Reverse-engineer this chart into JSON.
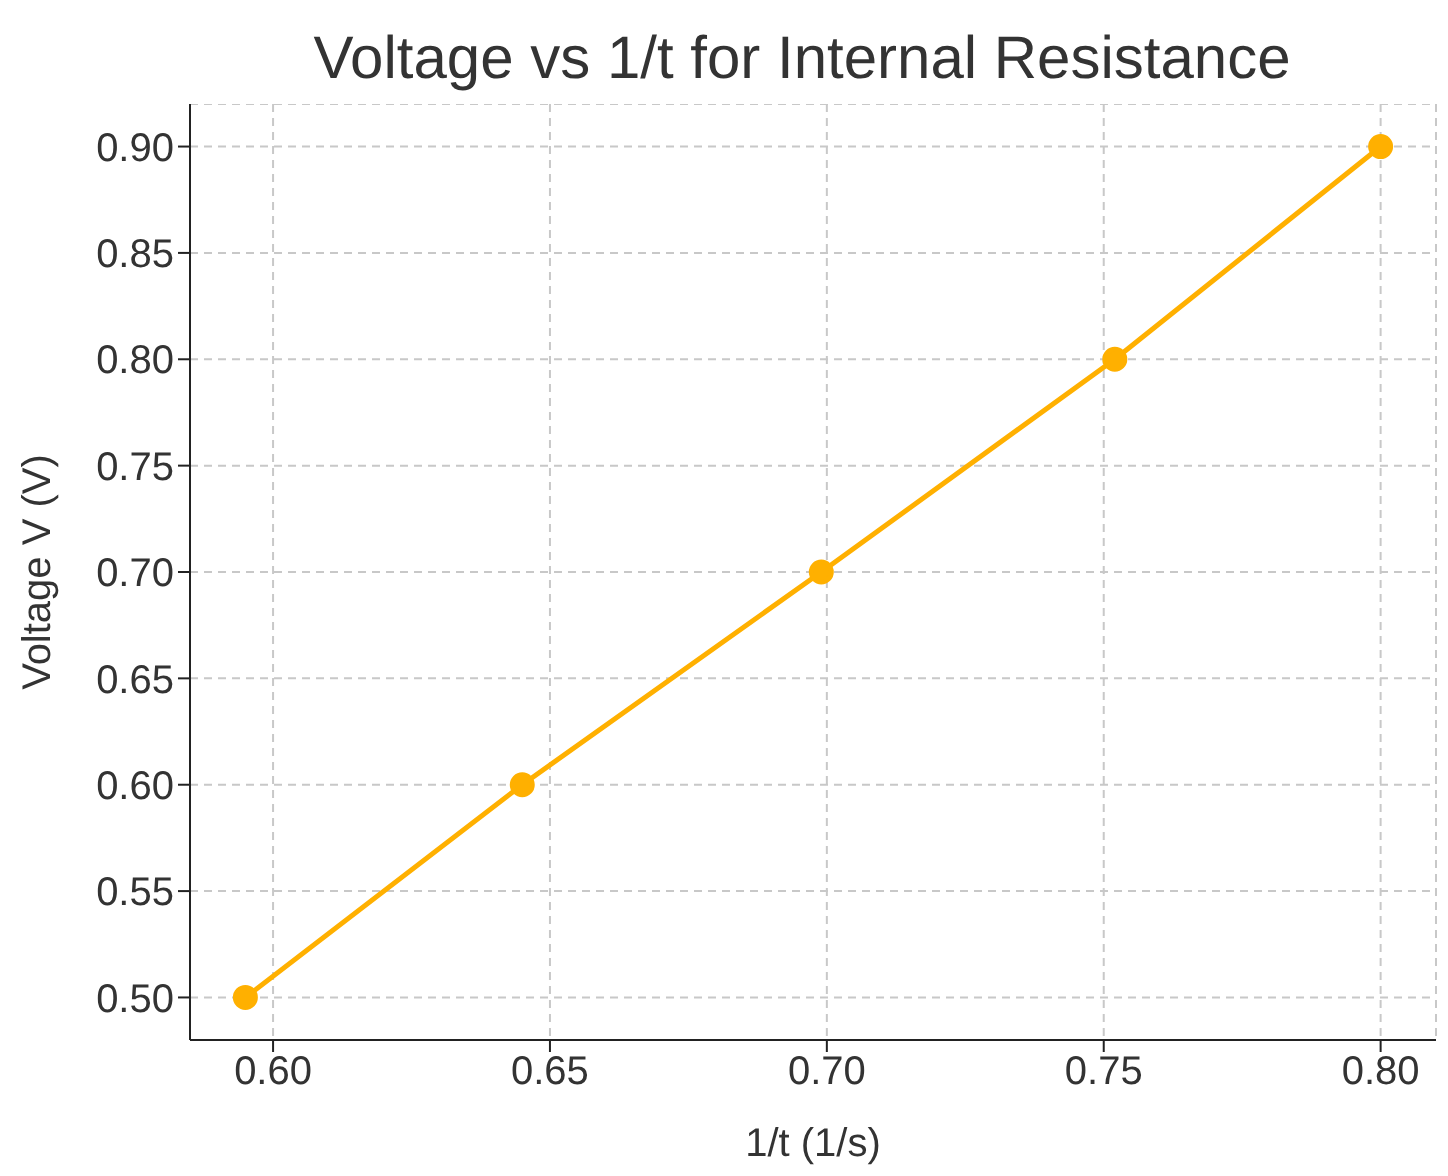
{
  "chart_data": {
    "type": "line",
    "title": "Voltage vs 1/t for Internal Resistance",
    "xlabel": "1/t (1/s)",
    "ylabel": "Voltage V (V)",
    "x": [
      0.595,
      0.645,
      0.699,
      0.752,
      0.8
    ],
    "series": [
      {
        "color": "#ffb000",
        "values": [
          0.5,
          0.6,
          0.7,
          0.8,
          0.9
        ]
      }
    ],
    "xlim": [
      0.585,
      0.81
    ],
    "xticks": [
      {
        "value": 0.6,
        "label": "0.60"
      },
      {
        "value": 0.65,
        "label": "0.65"
      },
      {
        "value": 0.7,
        "label": "0.70"
      },
      {
        "value": 0.75,
        "label": "0.75"
      },
      {
        "value": 0.8,
        "label": "0.80"
      }
    ],
    "ylim": [
      0.48,
      0.92
    ],
    "yticks": [
      {
        "value": 0.5,
        "label": "0.50"
      },
      {
        "value": 0.55,
        "label": "0.55"
      },
      {
        "value": 0.6,
        "label": "0.60"
      },
      {
        "value": 0.65,
        "label": "0.65"
      },
      {
        "value": 0.7,
        "label": "0.70"
      },
      {
        "value": 0.75,
        "label": "0.75"
      },
      {
        "value": 0.8,
        "label": "0.80"
      },
      {
        "value": 0.85,
        "label": "0.85"
      },
      {
        "value": 0.9,
        "label": "0.90"
      }
    ],
    "grid": true,
    "marker": "circle",
    "line_style": "solid"
  }
}
